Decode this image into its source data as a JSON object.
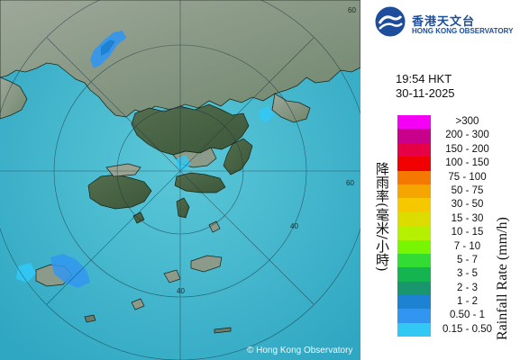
{
  "organization": {
    "name_zh": "香港天文台",
    "name_en": "HONG KONG OBSERVATORY",
    "logo_icon": "hko-logo-icon"
  },
  "observation": {
    "time": "19:54 HKT",
    "date": "30-11-2025"
  },
  "legend": {
    "title_zh": "降雨率(毫米/小時)",
    "title_en": "Rainfall Rate (mm/h)",
    "items": [
      {
        "label": ">300",
        "color": "#f500f5"
      },
      {
        "label": "200 - 300",
        "color": "#c8008c"
      },
      {
        "label": "150 - 200",
        "color": "#e60046"
      },
      {
        "label": "100 - 150",
        "color": "#f00000"
      },
      {
        "label": "75 - 100",
        "color": "#f57800"
      },
      {
        "label": "50 - 75",
        "color": "#f5a500"
      },
      {
        "label": "30 - 50",
        "color": "#f5c800"
      },
      {
        "label": "15 - 30",
        "color": "#dcdc00"
      },
      {
        "label": "10 - 15",
        "color": "#b4f000"
      },
      {
        "label": "7 - 10",
        "color": "#78f500"
      },
      {
        "label": "5 - 7",
        "color": "#32dc32"
      },
      {
        "label": "3 - 5",
        "color": "#14b450"
      },
      {
        "label": "2 - 3",
        "color": "#19966e"
      },
      {
        "label": "1 - 2",
        "color": "#1e82d2"
      },
      {
        "label": "0.50 - 1",
        "color": "#3296f0"
      },
      {
        "label": "0.15 - 0.50",
        "color": "#32c8f5"
      }
    ]
  },
  "map": {
    "range_ring_labels": [
      "60",
      "40",
      "60",
      "40"
    ],
    "copyright": "© Hong Kong Observatory",
    "sea_color": "#3fb4cc",
    "land_color": "#7b9178"
  }
}
